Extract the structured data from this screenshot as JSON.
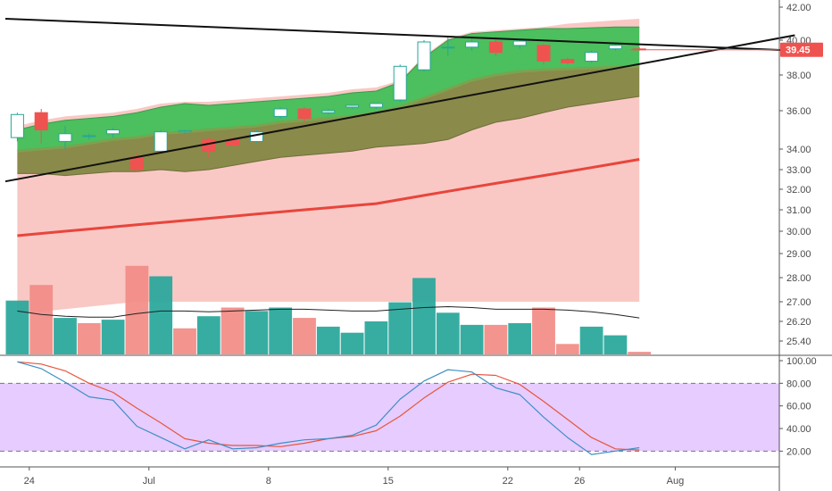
{
  "colors": {
    "up": "#26a69a",
    "down": "#ef5350",
    "up_volume": "#26a69a",
    "down_volume": "#f28b86",
    "bb_upper_fill": "#4cbf5e",
    "bb_lower_fill": "#8a8a4a",
    "envelope_fill": "#f9c8c4",
    "ma_fast": "#7aa34f",
    "ma_slow": "#e8453c",
    "trendline": "#111111",
    "stoch_k": "#3d8fc2",
    "stoch_d": "#e8553c",
    "stoch_band": "#e6ccff",
    "price_tag": "#ef5350"
  },
  "price_label": "39.45",
  "chart_data": [
    {
      "type": "candlestick",
      "price_axis_ticks": [
        "42.00",
        "40.00",
        "38.00",
        "36.00",
        "34.00",
        "33.00",
        "32.00",
        "31.00",
        "30.00",
        "29.00",
        "28.00",
        "27.00",
        "26.20",
        "25.40"
      ],
      "price_axis_values": [
        42.0,
        40.0,
        38.0,
        36.0,
        34.0,
        33.0,
        32.0,
        31.0,
        30.0,
        29.0,
        28.0,
        27.0,
        26.2,
        25.4
      ],
      "date_ticks": [
        "24",
        "Jul",
        "8",
        "15",
        "22",
        "26",
        "Aug"
      ],
      "date_tick_bars": [
        0.5,
        5.5,
        10.5,
        15.5,
        20.5,
        23.5,
        27.5
      ],
      "bars_total": 33,
      "current_price": 39.45,
      "candles": [
        {
          "o": 34.6,
          "h": 35.9,
          "l": 34.4,
          "c": 35.8
        },
        {
          "o": 35.9,
          "h": 36.1,
          "l": 34.3,
          "c": 35.0
        },
        {
          "o": 34.4,
          "h": 35.2,
          "l": 34.0,
          "c": 34.8
        },
        {
          "o": 34.7,
          "h": 34.8,
          "l": 34.5,
          "c": 34.7
        },
        {
          "o": 34.8,
          "h": 35.1,
          "l": 34.6,
          "c": 35.0
        },
        {
          "o": 33.6,
          "h": 33.8,
          "l": 32.9,
          "c": 33.0
        },
        {
          "o": 33.9,
          "h": 35.0,
          "l": 33.8,
          "c": 34.9
        },
        {
          "o": 34.9,
          "h": 35.0,
          "l": 34.8,
          "c": 34.95
        },
        {
          "o": 34.5,
          "h": 34.6,
          "l": 33.6,
          "c": 33.9
        },
        {
          "o": 34.5,
          "h": 34.6,
          "l": 34.2,
          "c": 34.2
        },
        {
          "o": 34.4,
          "h": 35.0,
          "l": 34.3,
          "c": 34.9
        },
        {
          "o": 35.7,
          "h": 36.2,
          "l": 35.6,
          "c": 36.1
        },
        {
          "o": 36.1,
          "h": 36.2,
          "l": 35.4,
          "c": 35.6
        },
        {
          "o": 35.9,
          "h": 36.1,
          "l": 35.8,
          "c": 36.0
        },
        {
          "o": 36.2,
          "h": 36.3,
          "l": 36.1,
          "c": 36.3
        },
        {
          "o": 36.2,
          "h": 36.4,
          "l": 36.1,
          "c": 36.4
        },
        {
          "o": 36.6,
          "h": 38.6,
          "l": 36.5,
          "c": 38.5
        },
        {
          "o": 38.3,
          "h": 40.0,
          "l": 38.2,
          "c": 39.9
        },
        {
          "o": 39.6,
          "h": 40.2,
          "l": 39.1,
          "c": 39.6
        },
        {
          "o": 39.6,
          "h": 40.1,
          "l": 39.4,
          "c": 39.9
        },
        {
          "o": 39.9,
          "h": 40.2,
          "l": 39.1,
          "c": 39.3
        },
        {
          "o": 39.7,
          "h": 40.0,
          "l": 39.5,
          "c": 39.95
        },
        {
          "o": 39.7,
          "h": 39.8,
          "l": 38.6,
          "c": 38.8
        },
        {
          "o": 38.9,
          "h": 39.0,
          "l": 38.6,
          "c": 38.7
        },
        {
          "o": 38.8,
          "h": 39.4,
          "l": 38.7,
          "c": 39.3
        },
        {
          "o": 39.5,
          "h": 39.8,
          "l": 39.4,
          "c": 39.7
        },
        {
          "o": 39.5,
          "h": 39.6,
          "l": 39.4,
          "c": 39.45
        }
      ],
      "ma_fast": [
        33.9,
        34.0,
        34.1,
        34.3,
        34.5,
        34.6,
        34.8,
        34.9,
        35.0,
        35.1,
        35.2,
        35.4,
        35.5,
        35.6,
        35.7,
        35.9,
        36.2,
        36.7,
        37.2,
        37.7,
        38.0,
        38.2,
        38.3,
        38.35,
        38.4,
        38.45,
        38.5
      ],
      "ma_slow": [
        29.8,
        29.9,
        30.0,
        30.1,
        30.2,
        30.3,
        30.4,
        30.5,
        30.6,
        30.7,
        30.8,
        30.9,
        31.0,
        31.1,
        31.2,
        31.3,
        31.5,
        31.7,
        31.9,
        32.1,
        32.3,
        32.5,
        32.7,
        32.9,
        33.1,
        33.3,
        33.5
      ],
      "bb_upper": [
        35.0,
        35.3,
        35.5,
        35.6,
        35.7,
        35.9,
        36.2,
        36.4,
        36.3,
        36.4,
        36.5,
        36.6,
        36.7,
        36.8,
        37.0,
        37.1,
        37.6,
        39.0,
        40.0,
        40.4,
        40.5,
        40.6,
        40.7,
        40.7,
        40.75,
        40.8,
        40.8
      ],
      "bb_lower": [
        32.8,
        32.8,
        32.7,
        32.8,
        32.9,
        32.9,
        33.0,
        32.9,
        33.0,
        33.2,
        33.4,
        33.6,
        33.7,
        33.8,
        33.9,
        34.1,
        34.2,
        34.3,
        34.5,
        35.0,
        35.4,
        35.6,
        35.9,
        36.2,
        36.4,
        36.6,
        36.8
      ],
      "envelope_upper": [
        35.2,
        35.5,
        35.7,
        35.8,
        35.9,
        36.1,
        36.4,
        36.5,
        36.5,
        36.6,
        36.7,
        36.8,
        36.9,
        37.0,
        37.2,
        37.3,
        37.7,
        39.1,
        40.1,
        40.5,
        40.6,
        40.7,
        40.8,
        41.0,
        41.1,
        41.2,
        41.3
      ],
      "envelope_lower": [
        26.5,
        26.6,
        26.7,
        26.8,
        26.9,
        27.0,
        27.0,
        27.0,
        27.0,
        27.0,
        27.0,
        27.0,
        27.0,
        27.0,
        27.0,
        27.0,
        27.0,
        27.0,
        27.0,
        27.0,
        27.0,
        27.0,
        27.0,
        27.0,
        27.0,
        27.0,
        27.0
      ],
      "trendline_upper": {
        "start": {
          "bar": -0.5,
          "price": 41.3
        },
        "end": {
          "bar": 32.5,
          "price": 39.4
        }
      },
      "trendline_lower": {
        "start": {
          "bar": -0.5,
          "price": 32.4
        },
        "end": {
          "bar": 32.5,
          "price": 40.3
        }
      },
      "volume": [
        {
          "v": 62,
          "up": true
        },
        {
          "v": 80,
          "up": false
        },
        {
          "v": 42,
          "up": true
        },
        {
          "v": 36,
          "up": false
        },
        {
          "v": 40,
          "up": true
        },
        {
          "v": 102,
          "up": false
        },
        {
          "v": 90,
          "up": true
        },
        {
          "v": 30,
          "up": false
        },
        {
          "v": 44,
          "up": true
        },
        {
          "v": 54,
          "up": false
        },
        {
          "v": 50,
          "up": true
        },
        {
          "v": 54,
          "up": true
        },
        {
          "v": 42,
          "up": false
        },
        {
          "v": 32,
          "up": true
        },
        {
          "v": 25,
          "up": true
        },
        {
          "v": 38,
          "up": true
        },
        {
          "v": 60,
          "up": true
        },
        {
          "v": 88,
          "up": true
        },
        {
          "v": 48,
          "up": true
        },
        {
          "v": 34,
          "up": true
        },
        {
          "v": 34,
          "up": false
        },
        {
          "v": 36,
          "up": true
        },
        {
          "v": 54,
          "up": false
        },
        {
          "v": 12,
          "up": false
        },
        {
          "v": 32,
          "up": true
        },
        {
          "v": 22,
          "up": true
        },
        {
          "v": 3,
          "up": false
        }
      ],
      "volume_ma": [
        50,
        46,
        44,
        43,
        43,
        47,
        50,
        50,
        49,
        50,
        51,
        52,
        52,
        51,
        50,
        50,
        52,
        54,
        55,
        54,
        52,
        52,
        52,
        51,
        49,
        46,
        42
      ],
      "volume_max": 110
    },
    {
      "type": "line",
      "ylim": [
        10,
        100
      ],
      "y_ticks": [
        "100.00",
        "80.00",
        "60.00",
        "40.00",
        "20.00"
      ],
      "y_tick_values": [
        100,
        80,
        60,
        40,
        20
      ],
      "band": [
        20,
        80
      ],
      "series": [
        {
          "key": "k",
          "values": [
            99,
            93,
            81,
            68,
            65,
            42,
            32,
            22,
            30,
            22,
            23,
            27,
            30,
            31,
            34,
            43,
            66,
            82,
            92,
            90,
            76,
            70,
            50,
            32,
            17,
            20,
            23
          ]
        },
        {
          "key": "d",
          "values": [
            99,
            97,
            91,
            80,
            72,
            58,
            45,
            31,
            27,
            25,
            25,
            24,
            27,
            31,
            33,
            38,
            51,
            67,
            81,
            88,
            87,
            79,
            64,
            48,
            32,
            22,
            21
          ]
        }
      ]
    }
  ]
}
